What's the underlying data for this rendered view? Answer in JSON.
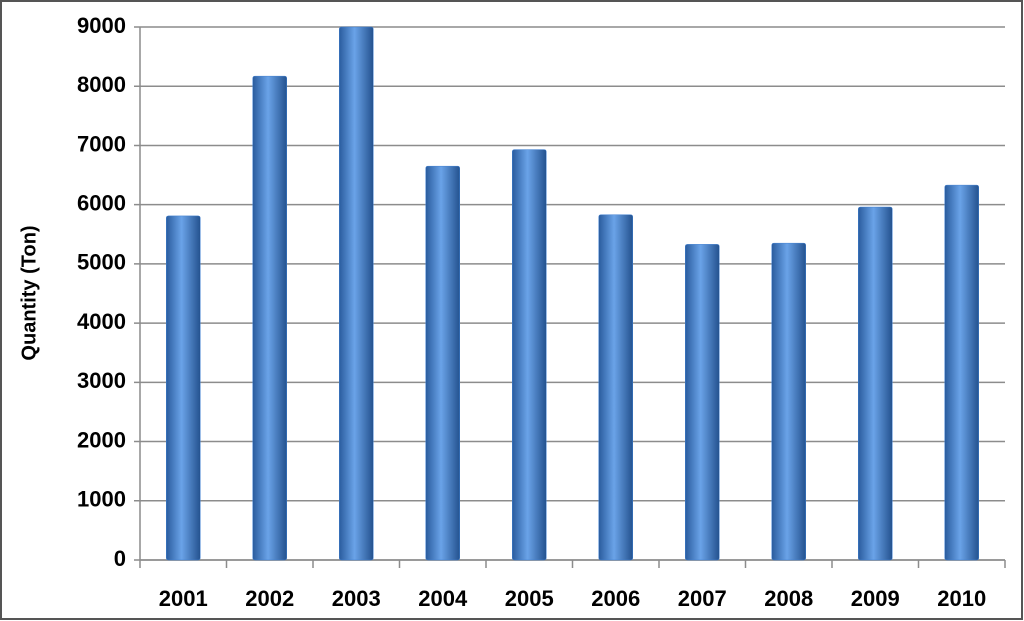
{
  "chart_data": {
    "type": "bar",
    "y_label": "Quantity  (Ton)",
    "categories": [
      "2001",
      "2002",
      "2003",
      "2004",
      "2005",
      "2006",
      "2007",
      "2008",
      "2009",
      "2010"
    ],
    "values": [
      5810,
      8170,
      9000,
      6650,
      6930,
      5830,
      5330,
      5350,
      5960,
      6330
    ],
    "color": "#3f7fd0",
    "ylim": [
      0,
      9000
    ],
    "yticks": [
      0,
      1000,
      2000,
      3000,
      4000,
      5000,
      6000,
      7000,
      8000,
      9000
    ],
    "grid": true
  }
}
